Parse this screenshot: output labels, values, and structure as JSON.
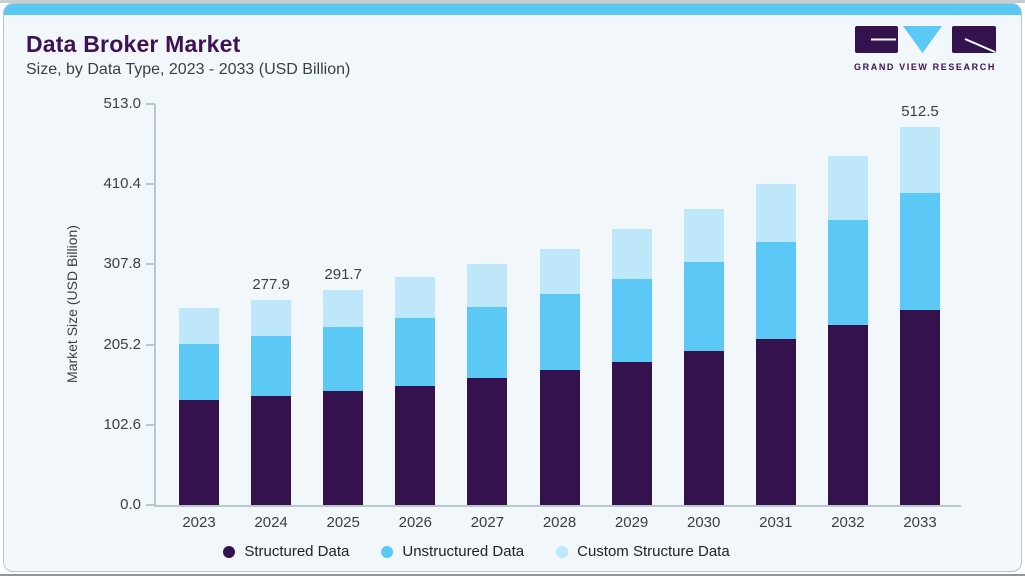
{
  "header": {
    "title": "Data Broker Market",
    "subtitle": "Size, by Data Type, 2023 - 2033 (USD Billion)",
    "logo_text": "GRAND VIEW RESEARCH"
  },
  "colors": {
    "card_background": "#f2f7fb",
    "top_strip": "#5bc8f3",
    "title_text": "#3e1254",
    "subtitle_text": "#3c4043",
    "axis_line": "#bcc6cd",
    "tick_text": "#3a3f45",
    "logo_purple": "#33124e",
    "logo_blue": "#5bc8f5"
  },
  "chart_data": {
    "type": "bar",
    "stacked": true,
    "title": "Data Broker Market Size, by Data Type, 2023 - 2033 (USD Billion)",
    "xlabel": "",
    "ylabel": "Market Size (USD Billion)",
    "categories": [
      "2023",
      "2024",
      "2025",
      "2026",
      "2027",
      "2028",
      "2029",
      "2030",
      "2031",
      "2032",
      "2033"
    ],
    "series": [
      {
        "name": "Structured Data",
        "color": "#33124e",
        "values": [
          142.6,
          148.5,
          155.3,
          162.1,
          172.1,
          183.4,
          194.7,
          209.6,
          224.6,
          244.9,
          264.6
        ]
      },
      {
        "name": "Unstructured Data",
        "color": "#5bc8f5",
        "values": [
          75.2,
          80.7,
          86.1,
          91.9,
          96.5,
          103.2,
          112.3,
          120.1,
          132.3,
          142.3,
          158.1
        ]
      },
      {
        "name": "Custom Structure Data",
        "color": "#bee7fa",
        "values": [
          49.4,
          48.7,
          50.3,
          55.3,
          58.8,
          61.2,
          67.0,
          71.5,
          78.2,
          86.5,
          89.8
        ]
      }
    ],
    "totals": [
      267.2,
      277.9,
      291.7,
      309.3,
      327.4,
      347.8,
      374.0,
      401.2,
      435.1,
      473.7,
      512.5
    ],
    "data_labels": [
      {
        "category": "2024",
        "text": "277.9"
      },
      {
        "category": "2025",
        "text": "291.7"
      },
      {
        "category": "2033",
        "text": "512.5"
      }
    ],
    "yticks": [
      "0.0",
      "102.6",
      "205.2",
      "307.8",
      "410.4",
      "513.0"
    ],
    "ylim": [
      0,
      513
    ],
    "grid": false,
    "legend_position": "bottom"
  }
}
